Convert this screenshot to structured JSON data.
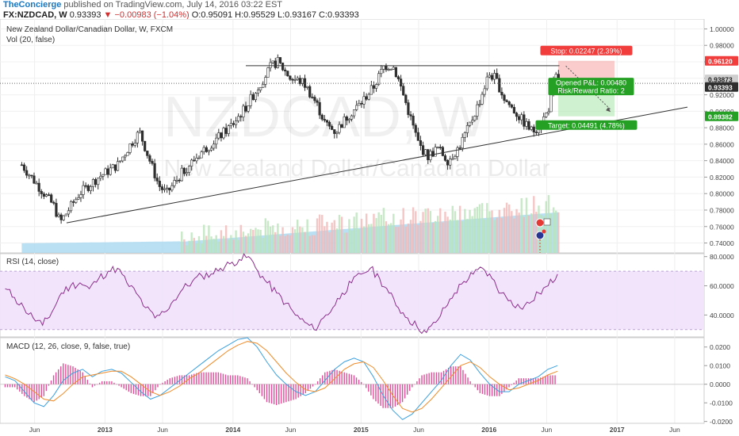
{
  "header": {
    "brand": "TheConcierge",
    "published": "published on TradingView.com, July 14, 2016 03:22 EST",
    "symbol": "FX:NZDCAD, W",
    "last": "0.93393",
    "change": "−0.00983 (−1.04%)",
    "ohlc": "O:0.95091 H:0.95529 L:0.93167 C:0.93393",
    "down_arrow": "▼"
  },
  "chart_data": [
    {
      "type": "candlestick",
      "title": "New Zealand Dollar/Canadian Dollar, W, FXCM",
      "watermark_symbol": "NZDCAD, W",
      "watermark_name": "New Zealand Dollar/Canadian Dollar",
      "volume_label": "Vol (20, false)",
      "x_tick_labels": [
        "Jun",
        "2013",
        "Jun",
        "2014",
        "Jun",
        "2015",
        "Jun",
        "2016",
        "Jun",
        "2017",
        "Jun"
      ],
      "y_tick_labels": [
        "1.00000",
        "0.98000",
        "0.96000",
        "0.94000",
        "0.92000",
        "0.90000",
        "0.88000",
        "0.86000",
        "0.84000",
        "0.82000",
        "0.80000",
        "0.78000",
        "0.76000",
        "0.74000"
      ],
      "ylim": [
        0.728,
        1.012
      ],
      "price_keypoints": [
        [
          2012.35,
          0.835
        ],
        [
          2012.45,
          0.815
        ],
        [
          2012.6,
          0.785
        ],
        [
          2012.65,
          0.765
        ],
        [
          2012.8,
          0.8
        ],
        [
          2012.95,
          0.82
        ],
        [
          2013.1,
          0.835
        ],
        [
          2013.2,
          0.86
        ],
        [
          2013.27,
          0.875
        ],
        [
          2013.35,
          0.84
        ],
        [
          2013.42,
          0.81
        ],
        [
          2013.48,
          0.8
        ],
        [
          2013.6,
          0.825
        ],
        [
          2013.75,
          0.85
        ],
        [
          2013.9,
          0.87
        ],
        [
          2014.0,
          0.885
        ],
        [
          2014.1,
          0.905
        ],
        [
          2014.2,
          0.93
        ],
        [
          2014.3,
          0.955
        ],
        [
          2014.35,
          0.96
        ],
        [
          2014.45,
          0.94
        ],
        [
          2014.55,
          0.935
        ],
        [
          2014.65,
          0.91
        ],
        [
          2014.72,
          0.885
        ],
        [
          2014.8,
          0.875
        ],
        [
          2014.9,
          0.895
        ],
        [
          2015.0,
          0.91
        ],
        [
          2015.1,
          0.93
        ],
        [
          2015.18,
          0.955
        ],
        [
          2015.25,
          0.955
        ],
        [
          2015.3,
          0.935
        ],
        [
          2015.38,
          0.895
        ],
        [
          2015.45,
          0.86
        ],
        [
          2015.52,
          0.845
        ],
        [
          2015.6,
          0.855
        ],
        [
          2015.68,
          0.84
        ],
        [
          2015.76,
          0.855
        ],
        [
          2015.84,
          0.88
        ],
        [
          2015.92,
          0.91
        ],
        [
          2016.0,
          0.945
        ],
        [
          2016.05,
          0.94
        ],
        [
          2016.12,
          0.915
        ],
        [
          2016.2,
          0.9
        ],
        [
          2016.28,
          0.885
        ],
        [
          2016.34,
          0.875
        ],
        [
          2016.4,
          0.885
        ],
        [
          2016.46,
          0.9
        ],
        [
          2016.5,
          0.93
        ],
        [
          2016.53,
          0.945
        ],
        [
          2016.535,
          0.934
        ]
      ],
      "resistance_line": [
        [
          2014.1,
          0.95529
        ],
        [
          2016.55,
          0.95529
        ]
      ],
      "support_line": [
        [
          2012.7,
          0.7645
        ],
        [
          2017.55,
          0.905
        ]
      ],
      "last_price": 0.93393,
      "position": {
        "entry": 0.93873,
        "stop": 0.9612,
        "target": 0.89382,
        "stop_label": "Stop: 0.02247 (2.39%)",
        "pnl_label": "Opened P&L: 0.00480",
        "rr_label": "Risk/Reward Ratio: 2",
        "target_label": "Target: 0.04491 (4.78%)"
      },
      "price_badges": {
        "stop": "0.96120",
        "entry": "0.93873",
        "last": "0.93393",
        "target": "0.89382"
      },
      "grid": true,
      "colors": {
        "up": "#2f2f2f",
        "down": "#2f2f2f",
        "stop": "#f28b8b",
        "target": "#8fdc8f",
        "stop_badge": "#f23d3d",
        "target_badge": "#25a025"
      }
    },
    {
      "type": "line",
      "title": "RSI (14, close)",
      "y_tick_labels": [
        "80.0000",
        "60.0000",
        "40.0000"
      ],
      "ylim": [
        25,
        82
      ],
      "band": [
        30,
        70
      ],
      "series": [
        {
          "values": [
            58,
            52,
            45,
            38,
            33,
            42,
            55,
            60,
            62,
            58,
            65,
            70,
            72,
            62,
            55,
            45,
            38,
            42,
            50,
            58,
            63,
            67,
            68,
            72,
            75,
            78,
            80,
            70,
            62,
            55,
            48,
            40,
            35,
            30,
            38,
            45,
            55,
            62,
            68,
            72,
            65,
            55,
            45,
            38,
            32,
            28,
            35,
            45,
            55,
            63,
            68,
            72,
            65,
            55,
            50,
            45,
            48,
            55,
            60,
            68
          ]
        }
      ],
      "colors": {
        "line": "#8b2e8b",
        "band": "#f2e6fa"
      }
    },
    {
      "type": "line",
      "title": "MACD (12, 26, close, 9, false, true)",
      "y_tick_labels": [
        "0.0200",
        "0.0100",
        "0.0000",
        "-0.0100",
        "-0.0200"
      ],
      "ylim": [
        -0.021,
        0.025
      ],
      "series": [
        {
          "name": "MACD",
          "values": [
            0.004,
            0.002,
            -0.004,
            -0.01,
            -0.012,
            -0.006,
            0.002,
            0.006,
            0.008,
            0.004,
            0.007,
            0.008,
            0.006,
            0.001,
            -0.004,
            -0.008,
            -0.006,
            -0.002,
            0.002,
            0.006,
            0.01,
            0.014,
            0.018,
            0.021,
            0.024,
            0.025,
            0.02,
            0.012,
            0.005,
            0.0,
            -0.004,
            -0.006,
            -0.004,
            0.002,
            0.008,
            0.012,
            0.014,
            0.012,
            0.004,
            -0.006,
            -0.014,
            -0.019,
            -0.016,
            -0.01,
            -0.004,
            0.002,
            0.01,
            0.016,
            0.013,
            0.006,
            0.0,
            -0.004,
            -0.004,
            0.0,
            0.002,
            0.004,
            0.008,
            0.01
          ]
        },
        {
          "name": "Signal",
          "values": [
            0.005,
            0.003,
            0.0,
            -0.004,
            -0.008,
            -0.009,
            -0.005,
            0.0,
            0.004,
            0.005,
            0.006,
            0.007,
            0.007,
            0.004,
            0.0,
            -0.004,
            -0.006,
            -0.004,
            -0.001,
            0.003,
            0.006,
            0.01,
            0.014,
            0.018,
            0.021,
            0.023,
            0.022,
            0.018,
            0.012,
            0.006,
            0.001,
            -0.003,
            -0.004,
            -0.002,
            0.003,
            0.008,
            0.011,
            0.012,
            0.009,
            0.002,
            -0.006,
            -0.013,
            -0.015,
            -0.013,
            -0.008,
            -0.002,
            0.004,
            0.01,
            0.012,
            0.009,
            0.004,
            0.0,
            -0.003,
            -0.002,
            0.0,
            0.002,
            0.005,
            0.007
          ]
        }
      ],
      "colors": {
        "macd": "#3aa0e0",
        "signal": "#f08c2a",
        "histogram": "#e0509a"
      }
    }
  ]
}
